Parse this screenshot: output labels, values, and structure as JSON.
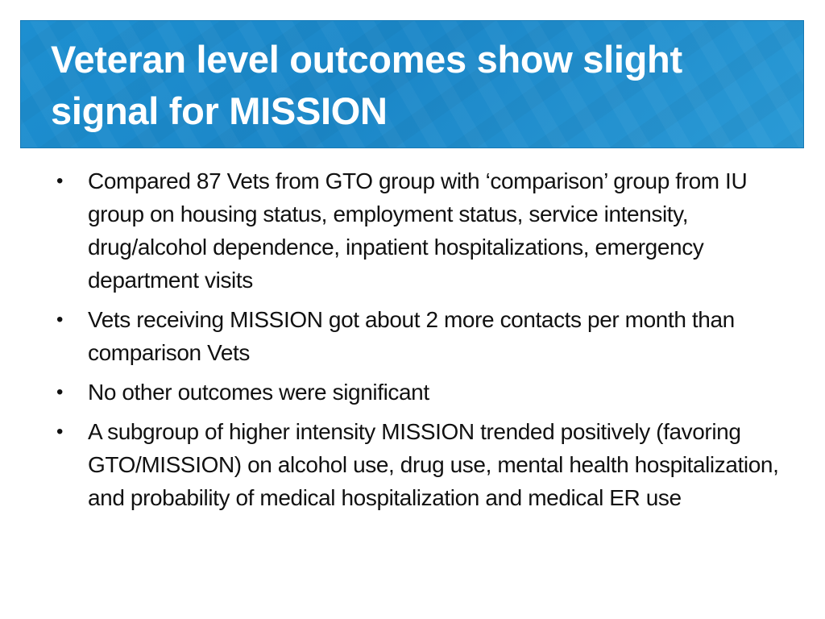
{
  "slide": {
    "title_lines": [
      "Veteran level outcomes show slight",
      "signal for MISSION"
    ],
    "bullets": [
      "Compared 87 Vets from GTO group with ‘comparison’ group from IU group on housing status, employment status, service intensity, drug/alcohol dependence, inpatient hospitalizations, emergency department visits",
      "Vets receiving MISSION got about 2 more contacts per month than comparison Vets",
      "No other outcomes were significant",
      "A subgroup of higher intensity MISSION trended positively (favoring GTO/MISSION) on alcohol use, drug use, mental health hospitalization, and probability of medical hospitalization and medical ER use"
    ],
    "bullet_glyph": "•",
    "colors": {
      "banner": "#1b87c8",
      "title_text": "#ffffff",
      "body_text": "#111111"
    }
  }
}
